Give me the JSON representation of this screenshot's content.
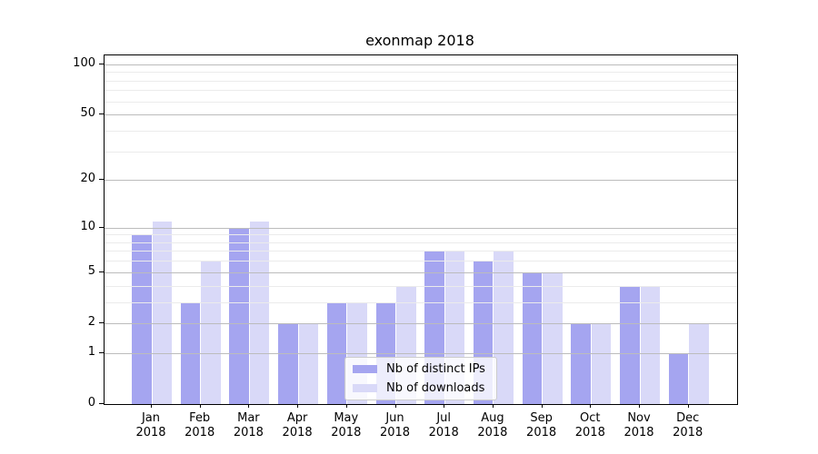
{
  "title": "exonmap 2018",
  "year": "2018",
  "colors": {
    "ips_bar": "#a5a5f0",
    "downloads_bar": "#d9d9f8",
    "grid_major": "#bcbcbc",
    "grid_minor": "#ebebeb",
    "spine": "#000000",
    "legend_border": "#cccccc"
  },
  "chart_data": {
    "type": "bar",
    "title": "exonmap 2018",
    "categories": [
      "Jan 2018",
      "Feb 2018",
      "Mar 2018",
      "Apr 2018",
      "May 2018",
      "Jun 2018",
      "Jul 2018",
      "Aug 2018",
      "Sep 2018",
      "Oct 2018",
      "Nov 2018",
      "Dec 2018"
    ],
    "month_labels": [
      "Jan",
      "Feb",
      "Mar",
      "Apr",
      "May",
      "Jun",
      "Jul",
      "Aug",
      "Sep",
      "Oct",
      "Nov",
      "Dec"
    ],
    "series": [
      {
        "name": "Nb of distinct IPs",
        "color": "#a5a5f0",
        "values": [
          9,
          3,
          10,
          2,
          3,
          3,
          7,
          6,
          5,
          2,
          4,
          1
        ]
      },
      {
        "name": "Nb of downloads",
        "color": "#d9d9f8",
        "values": [
          11,
          6,
          11,
          2,
          3,
          4,
          7,
          7,
          5,
          2,
          4,
          2
        ]
      }
    ],
    "xlabel": "",
    "ylabel": "",
    "yscale": "log1p",
    "ylim": [
      0,
      113
    ],
    "yticks": [
      0,
      1,
      2,
      5,
      10,
      20,
      50,
      100
    ],
    "yticks_minor": [
      3,
      4,
      6,
      7,
      8,
      9,
      30,
      40,
      60,
      70,
      80,
      90
    ],
    "grid": true,
    "legend_position": "lower center"
  }
}
